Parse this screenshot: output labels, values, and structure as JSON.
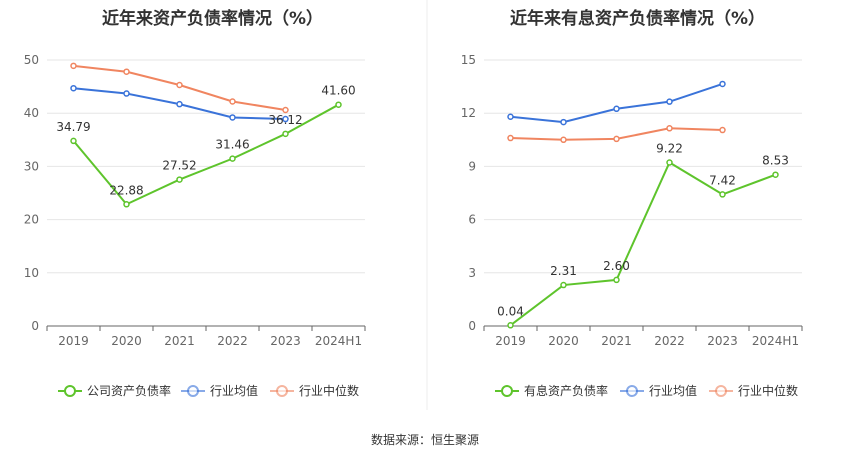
{
  "source_label": "数据来源：恒生聚源",
  "colors": {
    "company": "#5ec42c",
    "avg": "#3a73d9",
    "median": "#f08560",
    "grid": "#e6e6e6",
    "axis": "#666666"
  },
  "chart_data": [
    {
      "type": "line",
      "title": "近年来资产负债率情况（%）",
      "categories": [
        "2019",
        "2020",
        "2021",
        "2022",
        "2023",
        "2024H1"
      ],
      "ylim": [
        0,
        50
      ],
      "yticks": [
        0,
        10,
        20,
        30,
        40,
        50
      ],
      "grid": true,
      "legend_position": "bottom",
      "series": [
        {
          "name": "公司资产负债率",
          "key": "company",
          "values": [
            34.79,
            22.88,
            27.52,
            31.46,
            36.12,
            41.6
          ],
          "labels": [
            "34.79",
            "22.88",
            "27.52",
            "31.46",
            "36.12",
            "41.60"
          ]
        },
        {
          "name": "行业均值",
          "key": "avg",
          "values": [
            44.7,
            43.7,
            41.7,
            39.2,
            38.9,
            null
          ]
        },
        {
          "name": "行业中位数",
          "key": "median",
          "values": [
            48.9,
            47.8,
            45.3,
            42.2,
            40.6,
            null
          ]
        }
      ]
    },
    {
      "type": "line",
      "title": "近年来有息资产负债率情况（%）",
      "categories": [
        "2019",
        "2020",
        "2021",
        "2022",
        "2023",
        "2024H1"
      ],
      "ylim": [
        0,
        15
      ],
      "yticks": [
        0,
        3,
        6,
        9,
        12,
        15
      ],
      "grid": true,
      "legend_position": "bottom",
      "series": [
        {
          "name": "有息资产负债率",
          "key": "company",
          "values": [
            0.04,
            2.31,
            2.6,
            9.22,
            7.42,
            8.53
          ],
          "labels": [
            "0.04",
            "2.31",
            "2.60",
            "9.22",
            "7.42",
            "8.53"
          ]
        },
        {
          "name": "行业均值",
          "key": "avg",
          "values": [
            11.8,
            11.5,
            12.25,
            12.65,
            13.65,
            null
          ]
        },
        {
          "name": "行业中位数",
          "key": "median",
          "values": [
            10.6,
            10.5,
            10.55,
            11.15,
            11.05,
            null
          ]
        }
      ]
    }
  ]
}
